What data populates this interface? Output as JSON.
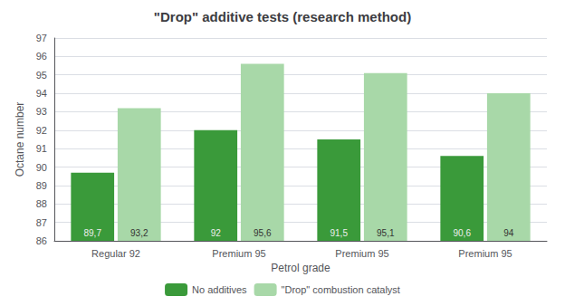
{
  "chart_data": {
    "type": "bar",
    "title": "\"Drop\" additive tests (research method)",
    "xlabel": "Petrol grade",
    "ylabel": "Octane number",
    "categories": [
      "Regular 92",
      "Premium 95",
      "Premium 95",
      "Premium 95"
    ],
    "series": [
      {
        "name": "No additives",
        "color": "#3A9A3A",
        "values": [
          89.7,
          92.0,
          91.5,
          90.6
        ],
        "value_labels": [
          "89,7",
          "92",
          "91,5",
          "90,6"
        ]
      },
      {
        "name": "\"Drop\" combustion catalyst",
        "color": "#A8D8A8",
        "values": [
          93.2,
          95.6,
          95.1,
          94.0
        ],
        "value_labels": [
          "93,2",
          "95,6",
          "95,1",
          "94"
        ]
      }
    ],
    "ylim": [
      86,
      97
    ],
    "yticks": [
      86,
      87,
      88,
      89,
      90,
      91,
      92,
      93,
      94,
      95,
      96,
      97
    ],
    "grid": true,
    "legend": "bottom",
    "data_labels": true
  }
}
